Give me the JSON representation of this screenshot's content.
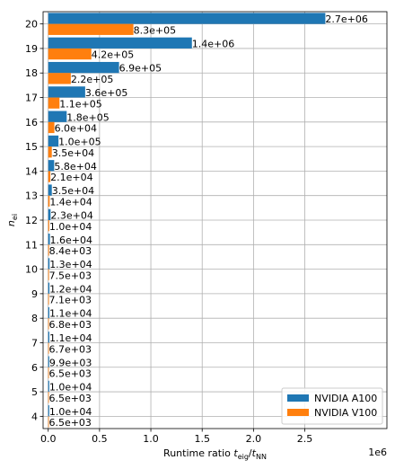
{
  "chart_data": {
    "type": "bar",
    "orientation": "horizontal",
    "categories": [
      "4",
      "5",
      "6",
      "7",
      "8",
      "9",
      "10",
      "11",
      "12",
      "13",
      "14",
      "15",
      "16",
      "17",
      "18",
      "19",
      "20"
    ],
    "series": [
      {
        "name": "NVIDIA A100",
        "color": "#1f77b4",
        "values": [
          10000,
          10000,
          9900,
          11000,
          11000,
          12000,
          13000,
          16000,
          23000,
          35000,
          58000,
          100000,
          180000,
          360000,
          690000,
          1400000,
          2700000
        ],
        "labels": [
          "1.0e+04",
          "1.0e+04",
          "9.9e+03",
          "1.1e+04",
          "1.1e+04",
          "1.2e+04",
          "1.3e+04",
          "1.6e+04",
          "2.3e+04",
          "3.5e+04",
          "5.8e+04",
          "1.0e+05",
          "1.8e+05",
          "3.6e+05",
          "6.9e+05",
          "1.4e+06",
          "2.7e+06"
        ]
      },
      {
        "name": "NVIDIA V100",
        "color": "#ff7f0e",
        "values": [
          6500,
          6500,
          6500,
          6700,
          6800,
          7100,
          7500,
          8400,
          10000,
          14000,
          21000,
          35000,
          60000,
          110000,
          220000,
          420000,
          830000
        ],
        "labels": [
          "6.5e+03",
          "6.5e+03",
          "6.5e+03",
          "6.7e+03",
          "6.8e+03",
          "7.1e+03",
          "7.5e+03",
          "8.4e+03",
          "1.0e+04",
          "1.4e+04",
          "2.1e+04",
          "3.5e+04",
          "6.0e+04",
          "1.1e+05",
          "2.2e+05",
          "4.2e+05",
          "8.3e+05"
        ]
      }
    ],
    "xlabel_main": "Runtime ratio ",
    "xlabel_math": "t",
    "xlabel_sub1": "eig",
    "xlabel_slash": "/",
    "xlabel_sub2": "NN",
    "ylabel_main": "n",
    "ylabel_sub": "ei",
    "x_ticks": [
      0,
      0.5,
      1.0,
      1.5,
      2.0,
      2.5
    ],
    "x_tick_labels": [
      "0.0",
      "0.5",
      "1.0",
      "1.5",
      "2.0",
      "2.5"
    ],
    "x_multiplier_label": "1e6",
    "x_scale": 1000000,
    "xlim": [
      -50000,
      3300000
    ],
    "grid": true,
    "legend_position": "lower-right"
  }
}
